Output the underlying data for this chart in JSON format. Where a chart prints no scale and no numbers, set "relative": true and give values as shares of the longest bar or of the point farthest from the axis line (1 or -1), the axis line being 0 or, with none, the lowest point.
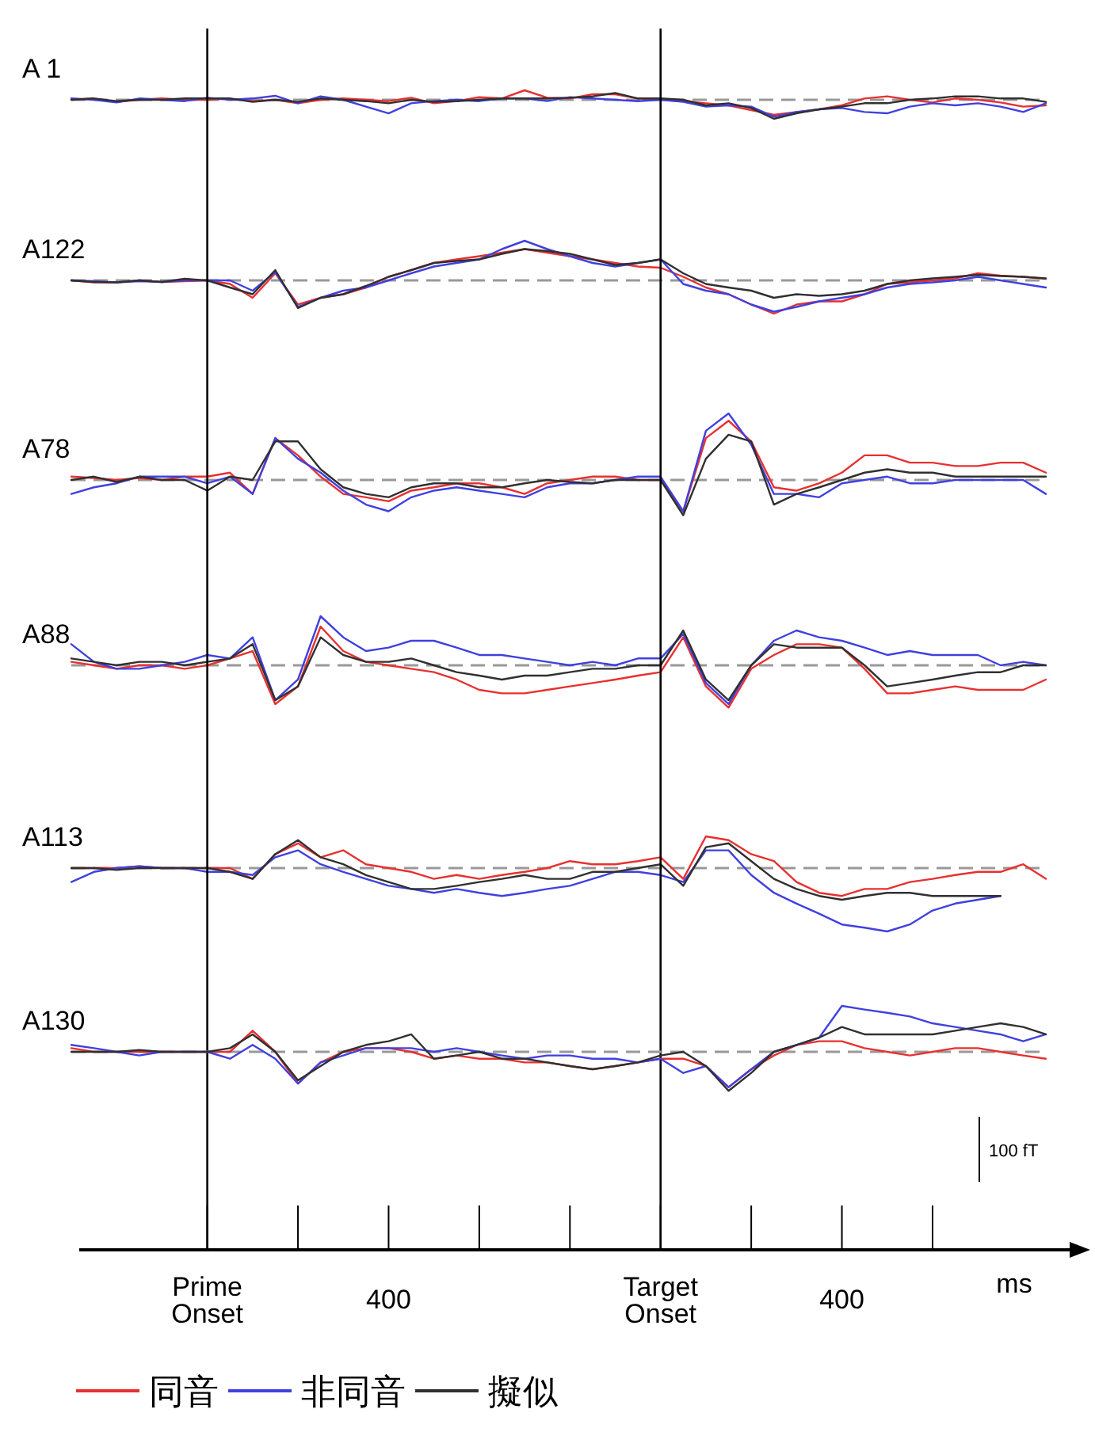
{
  "chart_data": [
    {
      "type": "line",
      "title": "A 1",
      "relative": true,
      "categories": [
        null,
        null,
        null,
        null,
        null,
        null,
        null,
        null,
        null,
        null,
        null,
        null,
        null,
        null,
        null,
        null,
        null,
        null,
        null,
        null,
        null,
        null,
        null,
        null,
        null,
        null,
        null,
        null,
        null,
        null,
        null,
        null,
        null,
        null,
        null,
        null,
        null,
        null,
        null,
        null,
        null,
        null,
        null,
        null
      ],
      "ref_lines": [
        {
          "axis": "y",
          "value": 0,
          "color": "#999999",
          "line_style": "dashed"
        }
      ],
      "series": [
        {
          "color": "#e83030",
          "values": [
            0,
            0.07,
            -0.11,
            0,
            0.07,
            0,
            0,
            0.07,
            -0.07,
            0,
            -0.18,
            0,
            0.07,
            0,
            -0.07,
            0.11,
            -0.18,
            -0.07,
            0.14,
            0.07,
            0.5,
            0.11,
            0.07,
            0.29,
            0.29,
            0.07,
            0,
            -0.07,
            -0.18,
            -0.29,
            -0.54,
            -0.79,
            -0.64,
            -0.5,
            -0.29,
            0.07,
            0.18,
            0,
            -0.14,
            0.07,
            0,
            -0.14,
            -0.36,
            -0.29
          ]
        },
        {
          "color": "#4040e0",
          "values": [
            0.07,
            0,
            -0.14,
            0.07,
            0,
            -0.07,
            0.11,
            0,
            0.07,
            0.21,
            -0.18,
            0.18,
            0,
            -0.36,
            -0.71,
            -0.18,
            -0.07,
            0,
            -0.07,
            0.07,
            0.07,
            -0.07,
            0.14,
            0.07,
            0,
            -0.07,
            0,
            -0.11,
            -0.36,
            -0.29,
            -0.36,
            -0.89,
            -0.64,
            -0.5,
            -0.43,
            -0.64,
            -0.71,
            -0.36,
            -0.18,
            -0.29,
            -0.18,
            -0.36,
            -0.64,
            -0.18
          ]
        },
        {
          "color": "#303030",
          "values": [
            0,
            0.07,
            -0.07,
            0,
            0,
            0.07,
            0.07,
            0.07,
            -0.11,
            0,
            -0.11,
            0.07,
            0,
            -0.07,
            -0.18,
            0,
            -0.11,
            -0.07,
            0,
            0.07,
            0.07,
            0.07,
            0.11,
            0.18,
            0.36,
            0.07,
            0.07,
            0,
            -0.29,
            -0.18,
            -0.43,
            -1,
            -0.71,
            -0.5,
            -0.36,
            -0.18,
            -0.18,
            0,
            0.07,
            0.18,
            0.18,
            0.07,
            0.07,
            -0.11
          ]
        }
      ]
    },
    {
      "type": "line",
      "title": "A122",
      "relative": true,
      "categories": [
        null,
        null,
        null,
        null,
        null,
        null,
        null,
        null,
        null,
        null,
        null,
        null,
        null,
        null,
        null,
        null,
        null,
        null,
        null,
        null,
        null,
        null,
        null,
        null,
        null,
        null,
        null,
        null,
        null,
        null,
        null,
        null,
        null,
        null,
        null,
        null,
        null,
        null,
        null,
        null,
        null,
        null,
        null,
        null
      ],
      "ref_lines": [
        {
          "axis": "y",
          "value": 0,
          "color": "#999999",
          "line_style": "dashed"
        }
      ],
      "series": [
        {
          "color": "#e83030",
          "values": [
            0,
            -0.05,
            -0.05,
            0,
            -0.04,
            -0.02,
            0,
            -0.09,
            -0.44,
            0.18,
            -0.61,
            -0.44,
            -0.35,
            -0.18,
            0.09,
            0.26,
            0.44,
            0.53,
            0.61,
            0.7,
            0.79,
            0.7,
            0.61,
            0.53,
            0.44,
            0.35,
            0.32,
            0.09,
            -0.18,
            -0.35,
            -0.61,
            -0.84,
            -0.61,
            -0.53,
            -0.53,
            -0.35,
            -0.09,
            -0.05,
            0,
            0.05,
            0.18,
            0.12,
            0.09,
            0.04
          ]
        },
        {
          "color": "#4040e0",
          "values": [
            0,
            -0.02,
            -0.05,
            -0.02,
            -0.04,
            0,
            0,
            0,
            -0.26,
            0.21,
            -0.67,
            -0.44,
            -0.26,
            -0.18,
            0,
            0.18,
            0.35,
            0.44,
            0.53,
            0.79,
            1,
            0.79,
            0.61,
            0.44,
            0.35,
            0.44,
            0.53,
            -0.09,
            -0.26,
            -0.35,
            -0.61,
            -0.79,
            -0.67,
            -0.53,
            -0.44,
            -0.35,
            -0.18,
            -0.09,
            -0.05,
            0,
            0.09,
            0,
            -0.09,
            -0.18
          ]
        },
        {
          "color": "#303030",
          "values": [
            0,
            -0.04,
            -0.05,
            0,
            -0.04,
            0.04,
            0,
            -0.18,
            -0.35,
            0.26,
            -0.7,
            -0.44,
            -0.35,
            -0.14,
            0.09,
            0.26,
            0.44,
            0.49,
            0.53,
            0.67,
            0.79,
            0.74,
            0.67,
            0.53,
            0.39,
            0.44,
            0.53,
            0.18,
            -0.09,
            -0.18,
            -0.26,
            -0.44,
            -0.35,
            -0.39,
            -0.35,
            -0.26,
            -0.09,
            0,
            0.05,
            0.09,
            0.14,
            0.11,
            0.09,
            0.05
          ]
        }
      ]
    },
    {
      "type": "line",
      "title": "A78",
      "relative": true,
      "categories": [
        null,
        null,
        null,
        null,
        null,
        null,
        null,
        null,
        null,
        null,
        null,
        null,
        null,
        null,
        null,
        null,
        null,
        null,
        null,
        null,
        null,
        null,
        null,
        null,
        null,
        null,
        null,
        null,
        null,
        null,
        null,
        null,
        null,
        null,
        null,
        null,
        null,
        null,
        null,
        null,
        null,
        null,
        null,
        null
      ],
      "ref_lines": [
        {
          "axis": "y",
          "value": 0,
          "color": "#999999",
          "line_style": "dashed"
        }
      ],
      "series": [
        {
          "color": "#e83030",
          "values": [
            0.05,
            0.03,
            0,
            0.03,
            0,
            0.05,
            0.05,
            0.11,
            -0.21,
            0.63,
            0.37,
            0.05,
            -0.21,
            -0.26,
            -0.32,
            -0.16,
            -0.11,
            -0.05,
            -0.05,
            -0.11,
            -0.21,
            -0.05,
            0,
            0.05,
            0.05,
            0,
            0,
            -0.47,
            0.63,
            0.89,
            0.58,
            -0.11,
            -0.16,
            -0.05,
            0.11,
            0.37,
            0.37,
            0.26,
            0.26,
            0.21,
            0.21,
            0.26,
            0.26,
            0.11
          ]
        },
        {
          "color": "#4040e0",
          "values": [
            -0.21,
            -0.11,
            -0.05,
            0.05,
            0.05,
            0.05,
            -0.05,
            0.05,
            -0.21,
            0.63,
            0.32,
            0.11,
            -0.16,
            -0.37,
            -0.47,
            -0.26,
            -0.16,
            -0.11,
            -0.16,
            -0.21,
            -0.26,
            -0.11,
            -0.05,
            -0.05,
            0,
            0.05,
            0.05,
            -0.47,
            0.74,
            1,
            0.53,
            -0.21,
            -0.21,
            -0.26,
            -0.05,
            0,
            0.05,
            -0.05,
            -0.05,
            0,
            0,
            0,
            0,
            -0.21
          ]
        },
        {
          "color": "#303030",
          "values": [
            0,
            0.05,
            -0.03,
            0.05,
            0,
            0,
            -0.16,
            0.05,
            0,
            0.58,
            0.58,
            0.16,
            -0.11,
            -0.21,
            -0.26,
            -0.11,
            -0.05,
            -0.05,
            -0.11,
            -0.11,
            -0.05,
            0,
            -0.03,
            -0.05,
            0,
            0,
            0,
            -0.53,
            0.32,
            0.68,
            0.58,
            -0.37,
            -0.21,
            -0.11,
            0,
            0.11,
            0.16,
            0.11,
            0.11,
            0.05,
            0.05,
            0.05,
            0.05,
            0.05
          ]
        }
      ]
    },
    {
      "type": "line",
      "title": "A88",
      "relative": true,
      "categories": [
        null,
        null,
        null,
        null,
        null,
        null,
        null,
        null,
        null,
        null,
        null,
        null,
        null,
        null,
        null,
        null,
        null,
        null,
        null,
        null,
        null,
        null,
        null,
        null,
        null,
        null,
        null,
        null,
        null,
        null,
        null,
        null,
        null,
        null,
        null,
        null,
        null,
        null,
        null,
        null,
        null,
        null,
        null,
        null
      ],
      "ref_lines": [
        {
          "axis": "y",
          "value": 0,
          "color": "#999999",
          "line_style": "dashed"
        }
      ],
      "series": [
        {
          "color": "#e83030",
          "values": [
            0.07,
            0,
            -0.07,
            0,
            0,
            -0.07,
            0,
            0.14,
            0.29,
            -0.79,
            -0.43,
            0.79,
            0.29,
            0.07,
            0,
            -0.07,
            -0.14,
            -0.29,
            -0.5,
            -0.57,
            -0.57,
            -0.5,
            -0.43,
            -0.36,
            -0.29,
            -0.21,
            -0.14,
            0.57,
            -0.43,
            -0.86,
            -0.07,
            0.21,
            0.43,
            0.43,
            0.36,
            -0.07,
            -0.57,
            -0.57,
            -0.5,
            -0.43,
            -0.5,
            -0.5,
            -0.5,
            -0.29
          ]
        },
        {
          "color": "#4040e0",
          "values": [
            0.43,
            0.07,
            -0.07,
            -0.07,
            0,
            0.07,
            0.21,
            0.14,
            0.57,
            -0.71,
            -0.29,
            1,
            0.57,
            0.29,
            0.36,
            0.5,
            0.5,
            0.36,
            0.21,
            0.21,
            0.14,
            0.07,
            0,
            0.07,
            0,
            0.14,
            0.14,
            0.64,
            -0.36,
            -0.79,
            0,
            0.5,
            0.71,
            0.57,
            0.5,
            0.36,
            0.21,
            0.29,
            0.21,
            0.21,
            0.21,
            0,
            0.07,
            0
          ]
        },
        {
          "color": "#303030",
          "values": [
            0.14,
            0.07,
            0,
            0.07,
            0.07,
            0,
            0.07,
            0.14,
            0.43,
            -0.71,
            -0.43,
            0.57,
            0.21,
            0.07,
            0.07,
            0.14,
            0,
            -0.14,
            -0.21,
            -0.29,
            -0.21,
            -0.21,
            -0.14,
            -0.07,
            -0.07,
            0,
            0,
            0.71,
            -0.29,
            -0.71,
            0,
            0.43,
            0.36,
            0.36,
            0.36,
            0,
            -0.43,
            -0.36,
            -0.29,
            -0.21,
            -0.14,
            -0.14,
            0,
            0
          ]
        }
      ]
    },
    {
      "type": "line",
      "title": "A113",
      "relative": true,
      "categories": [
        null,
        null,
        null,
        null,
        null,
        null,
        null,
        null,
        null,
        null,
        null,
        null,
        null,
        null,
        null,
        null,
        null,
        null,
        null,
        null,
        null,
        null,
        null,
        null,
        null,
        null,
        null,
        null,
        null,
        null,
        null,
        null,
        null,
        null,
        null,
        null,
        null,
        null,
        null,
        null,
        null,
        null,
        null,
        null
      ],
      "ref_lines": [
        {
          "axis": "y",
          "value": 0,
          "color": "#999999",
          "line_style": "dashed"
        }
      ],
      "series": [
        {
          "color": "#e83030",
          "values": [
            0,
            0,
            0,
            0.03,
            0,
            0,
            0,
            0,
            -0.17,
            0.22,
            0.39,
            0.17,
            0.28,
            0.06,
            0,
            -0.06,
            -0.17,
            -0.11,
            -0.17,
            -0.11,
            -0.06,
            0,
            0.11,
            0.06,
            0.06,
            0.11,
            0.17,
            -0.17,
            0.5,
            0.44,
            0.22,
            0.11,
            -0.22,
            -0.39,
            -0.44,
            -0.33,
            -0.33,
            -0.22,
            -0.17,
            -0.11,
            -0.06,
            -0.06,
            0.06,
            -0.17
          ]
        },
        {
          "color": "#4040e0",
          "values": [
            -0.22,
            -0.06,
            0,
            0.03,
            0,
            0,
            -0.06,
            -0.06,
            -0.11,
            0.17,
            0.28,
            0.06,
            -0.06,
            -0.17,
            -0.28,
            -0.33,
            -0.39,
            -0.33,
            -0.39,
            -0.44,
            -0.39,
            -0.33,
            -0.28,
            -0.17,
            -0.06,
            -0.06,
            -0.11,
            -0.22,
            0.28,
            0.28,
            -0.11,
            -0.39,
            -0.56,
            -0.72,
            -0.89,
            -0.94,
            -1,
            -0.89,
            -0.67,
            -0.56,
            -0.5,
            -0.44,
            null,
            null
          ]
        },
        {
          "color": "#303030",
          "values": [
            0,
            0,
            -0.03,
            0,
            0,
            0,
            0,
            -0.06,
            -0.17,
            0.22,
            0.44,
            0.17,
            0.06,
            -0.11,
            -0.22,
            -0.33,
            -0.33,
            -0.28,
            -0.22,
            -0.17,
            -0.11,
            -0.17,
            -0.17,
            -0.06,
            -0.06,
            0,
            0.06,
            -0.28,
            0.33,
            0.39,
            0.11,
            -0.17,
            -0.33,
            -0.44,
            -0.5,
            -0.44,
            -0.39,
            -0.39,
            -0.44,
            -0.44,
            -0.44,
            -0.44,
            null,
            null
          ]
        }
      ]
    },
    {
      "type": "line",
      "title": "A130",
      "relative": true,
      "xlabel": "ms",
      "legend": "bottom",
      "categories": [
        null,
        null,
        null,
        null,
        null,
        null,
        "Prime Onset",
        null,
        null,
        null,
        null,
        null,
        null,
        null,
        "400",
        null,
        null,
        null,
        null,
        null,
        null,
        null,
        null,
        null,
        null,
        null,
        "Target Onset",
        null,
        null,
        null,
        null,
        null,
        null,
        null,
        "400",
        null,
        null,
        null,
        null,
        null,
        null,
        null,
        null,
        null
      ],
      "annotations": [
        "100 fT"
      ],
      "ref_lines": [
        {
          "axis": "x",
          "value": "Prime Onset",
          "color": "#000000"
        },
        {
          "axis": "x",
          "value": "Target Onset",
          "color": "#000000"
        },
        {
          "axis": "y",
          "value": 0,
          "color": "#999999",
          "line_style": "dashed"
        }
      ],
      "series": [
        {
          "name": "同音",
          "color": "#e83030",
          "values": [
            0.08,
            0,
            0,
            0,
            0,
            0,
            0,
            0,
            0.46,
            0,
            -0.69,
            -0.23,
            0,
            0.08,
            0.08,
            0,
            -0.15,
            -0.08,
            -0.15,
            -0.15,
            -0.23,
            -0.23,
            -0.31,
            -0.38,
            -0.31,
            -0.23,
            -0.15,
            -0.15,
            -0.31,
            -0.77,
            -0.38,
            -0.08,
            0.15,
            0.23,
            0.23,
            0.08,
            0,
            -0.08,
            0,
            0.08,
            0.08,
            0,
            -0.08,
            -0.15
          ]
        },
        {
          "name": "非同音",
          "color": "#4040e0",
          "values": [
            0.15,
            0.08,
            0,
            -0.08,
            0,
            0,
            0,
            -0.15,
            0.15,
            -0.15,
            -0.69,
            -0.23,
            -0.08,
            0.08,
            0.08,
            0.08,
            0,
            0.08,
            0,
            -0.08,
            -0.15,
            -0.08,
            -0.08,
            -0.15,
            -0.15,
            -0.23,
            -0.15,
            -0.46,
            -0.31,
            -0.77,
            -0.38,
            0,
            0.15,
            0.31,
            1,
            0.92,
            0.85,
            0.77,
            0.62,
            0.54,
            0.46,
            0.38,
            0.23,
            0.38
          ]
        },
        {
          "name": "擬似",
          "color": "#303030",
          "values": [
            0,
            0,
            0,
            0.04,
            0,
            0,
            0,
            0.08,
            0.38,
            0,
            -0.62,
            -0.31,
            0,
            0.15,
            0.23,
            0.38,
            -0.15,
            -0.08,
            0,
            -0.15,
            -0.15,
            -0.23,
            -0.31,
            -0.38,
            -0.31,
            -0.23,
            -0.08,
            0,
            -0.31,
            -0.85,
            -0.46,
            0,
            0.15,
            0.31,
            0.54,
            0.38,
            0.38,
            0.38,
            0.38,
            0.46,
            0.54,
            0.62,
            0.54,
            0.38
          ]
        }
      ]
    }
  ]
}
